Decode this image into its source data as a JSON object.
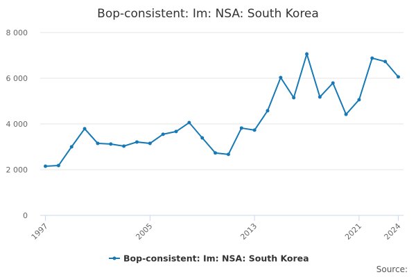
{
  "chart_data": {
    "type": "line",
    "title": "Bop-consistent: Im: NSA: South Korea",
    "x": [
      1997,
      1998,
      1999,
      2000,
      2001,
      2002,
      2003,
      2004,
      2005,
      2006,
      2007,
      2008,
      2009,
      2010,
      2011,
      2012,
      2013,
      2014,
      2015,
      2016,
      2017,
      2018,
      2019,
      2020,
      2021,
      2022,
      2023,
      2024
    ],
    "series": [
      {
        "name": "Bop-consistent: Im: NSA: South Korea",
        "color": "#1679b5",
        "values": [
          2150,
          2180,
          3000,
          3790,
          3150,
          3120,
          3030,
          3210,
          3150,
          3550,
          3670,
          4060,
          3390,
          2730,
          2670,
          3820,
          3730,
          4580,
          6030,
          5150,
          7060,
          5180,
          5790,
          4420,
          5060,
          6880,
          6730,
          6060
        ]
      }
    ],
    "xlim": [
      1996.6,
      2024.4
    ],
    "xticks": [
      1997,
      2005,
      2013,
      2021,
      2024
    ],
    "ylim": [
      0,
      8000
    ],
    "yticks": [
      0,
      {
        "value": 2000,
        "label": "2 000"
      },
      {
        "value": 4000,
        "label": "4 000"
      },
      {
        "value": 6000,
        "label": "6 000"
      },
      {
        "value": 8000,
        "label": "8 000"
      }
    ],
    "grid": true,
    "legend": "bottom",
    "source": "Source:"
  }
}
